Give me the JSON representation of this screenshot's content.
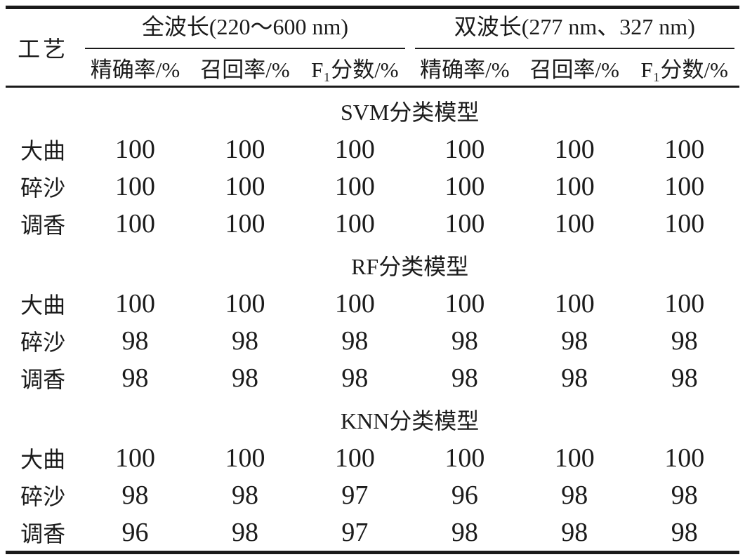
{
  "page": {
    "background": "#ffffff",
    "text_color": "#1b1b1b",
    "rule_color": "#1a1a1a"
  },
  "table": {
    "corner_header": "工艺",
    "groups": [
      {
        "label": "全波长(220～600 nm)"
      },
      {
        "label": "双波长(277 nm、327 nm)"
      }
    ],
    "sub_headers": [
      "精确率/%",
      "召回率/%",
      "F₁分数/%",
      "精确率/%",
      "召回率/%",
      "F₁分数/%"
    ],
    "sections": [
      {
        "title": "SVM分类模型",
        "rows": [
          {
            "label": "大曲",
            "values": [
              "100",
              "100",
              "100",
              "100",
              "100",
              "100"
            ]
          },
          {
            "label": "碎沙",
            "values": [
              "100",
              "100",
              "100",
              "100",
              "100",
              "100"
            ]
          },
          {
            "label": "调香",
            "values": [
              "100",
              "100",
              "100",
              "100",
              "100",
              "100"
            ]
          }
        ]
      },
      {
        "title": "RF分类模型",
        "rows": [
          {
            "label": "大曲",
            "values": [
              "100",
              "100",
              "100",
              "100",
              "100",
              "100"
            ]
          },
          {
            "label": "碎沙",
            "values": [
              "98",
              "98",
              "98",
              "98",
              "98",
              "98"
            ]
          },
          {
            "label": "调香",
            "values": [
              "98",
              "98",
              "98",
              "98",
              "98",
              "98"
            ]
          }
        ]
      },
      {
        "title": "KNN分类模型",
        "rows": [
          {
            "label": "大曲",
            "values": [
              "100",
              "100",
              "100",
              "100",
              "100",
              "100"
            ]
          },
          {
            "label": "碎沙",
            "values": [
              "98",
              "98",
              "97",
              "96",
              "98",
              "98"
            ]
          },
          {
            "label": "调香",
            "values": [
              "96",
              "98",
              "97",
              "98",
              "98",
              "98"
            ]
          }
        ]
      }
    ]
  }
}
